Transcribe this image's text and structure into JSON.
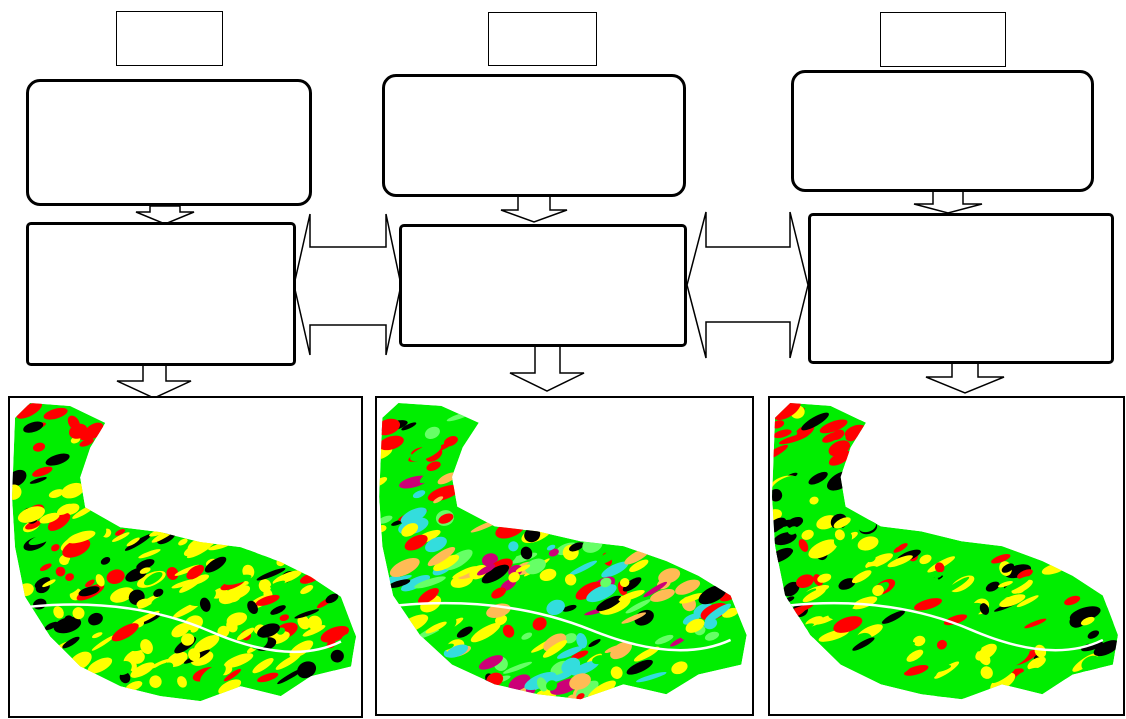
{
  "diagram": {
    "columns": [
      {
        "top_label": "",
        "process_box": "",
        "result_box": "",
        "map": "land-cover-map"
      },
      {
        "top_label": "",
        "process_box": "",
        "result_box": "",
        "map": "land-cover-map"
      },
      {
        "top_label": "",
        "process_box": "",
        "result_box": "",
        "map": "land-cover-map"
      }
    ],
    "connectors": [
      "down-arrow",
      "double-headed-arrow"
    ]
  },
  "map_palette": {
    "red": "#ff0000",
    "yellow": "#ffff00",
    "green": "#00ee00",
    "black": "#000000",
    "magenta": "#cc0077",
    "cyan": "#33dddd",
    "orange": "#ffbb55",
    "light_green": "#66ff66"
  }
}
